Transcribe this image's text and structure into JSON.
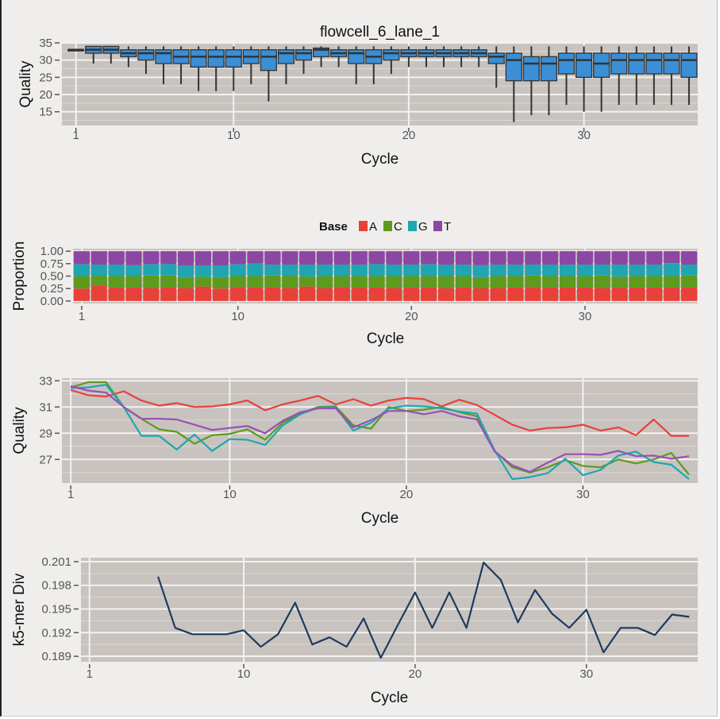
{
  "chart_data": [
    {
      "type": "box",
      "title": "flowcell_6_lane_1",
      "xlabel": "Cycle",
      "ylabel": "Quality",
      "xlim": [
        0.2,
        36.5
      ],
      "ylim": [
        11,
        35
      ],
      "xticks": [
        1,
        10,
        20,
        30
      ],
      "yticks": [
        15,
        20,
        25,
        30,
        35
      ],
      "fill_color": "#3a8fd6",
      "boxes": [
        {
          "x": 1,
          "lo": 33,
          "q1": 33,
          "med": 33,
          "q3": 33,
          "hi": 33
        },
        {
          "x": 2,
          "lo": 29,
          "q1": 32,
          "med": 33,
          "q3": 34,
          "hi": 34
        },
        {
          "x": 3,
          "lo": 29,
          "q1": 32,
          "med": 33,
          "q3": 34,
          "hi": 34
        },
        {
          "x": 4,
          "lo": 28,
          "q1": 31,
          "med": 32,
          "q3": 33,
          "hi": 34
        },
        {
          "x": 5,
          "lo": 26,
          "q1": 30,
          "med": 32,
          "q3": 33,
          "hi": 34
        },
        {
          "x": 6,
          "lo": 23,
          "q1": 29,
          "med": 32,
          "q3": 33,
          "hi": 34
        },
        {
          "x": 7,
          "lo": 23,
          "q1": 29,
          "med": 31,
          "q3": 33,
          "hi": 34
        },
        {
          "x": 8,
          "lo": 21,
          "q1": 28,
          "med": 31,
          "q3": 33,
          "hi": 34
        },
        {
          "x": 9,
          "lo": 21,
          "q1": 28,
          "med": 31,
          "q3": 33,
          "hi": 34
        },
        {
          "x": 10,
          "lo": 21,
          "q1": 28,
          "med": 31,
          "q3": 33,
          "hi": 34
        },
        {
          "x": 11,
          "lo": 23,
          "q1": 29,
          "med": 31,
          "q3": 33,
          "hi": 34
        },
        {
          "x": 12,
          "lo": 18,
          "q1": 27,
          "med": 31,
          "q3": 33,
          "hi": 34
        },
        {
          "x": 13,
          "lo": 23,
          "q1": 29,
          "med": 32,
          "q3": 33,
          "hi": 34
        },
        {
          "x": 14,
          "lo": 26,
          "q1": 30,
          "med": 32,
          "q3": 33,
          "hi": 34
        },
        {
          "x": 15,
          "lo": 28,
          "q1": 31,
          "med": 33,
          "q3": 33.5,
          "hi": 34
        },
        {
          "x": 16,
          "lo": 28,
          "q1": 31,
          "med": 32,
          "q3": 33,
          "hi": 34
        },
        {
          "x": 17,
          "lo": 23,
          "q1": 29,
          "med": 32,
          "q3": 33,
          "hi": 34
        },
        {
          "x": 18,
          "lo": 23,
          "q1": 29,
          "med": 31,
          "q3": 33,
          "hi": 34
        },
        {
          "x": 19,
          "lo": 26,
          "q1": 30,
          "med": 32,
          "q3": 33,
          "hi": 34
        },
        {
          "x": 20,
          "lo": 28,
          "q1": 31,
          "med": 32,
          "q3": 33,
          "hi": 34
        },
        {
          "x": 21,
          "lo": 28,
          "q1": 31,
          "med": 32,
          "q3": 33,
          "hi": 34
        },
        {
          "x": 22,
          "lo": 28,
          "q1": 31,
          "med": 32,
          "q3": 33,
          "hi": 34
        },
        {
          "x": 23,
          "lo": 28,
          "q1": 31,
          "med": 32,
          "q3": 33,
          "hi": 34
        },
        {
          "x": 24,
          "lo": 28,
          "q1": 31,
          "med": 32,
          "q3": 33,
          "hi": 34
        },
        {
          "x": 25,
          "lo": 22,
          "q1": 29,
          "med": 31,
          "q3": 32,
          "hi": 34
        },
        {
          "x": 26,
          "lo": 12,
          "q1": 24,
          "med": 30,
          "q3": 32,
          "hi": 34
        },
        {
          "x": 27,
          "lo": 14,
          "q1": 24,
          "med": 29,
          "q3": 31,
          "hi": 34
        },
        {
          "x": 28,
          "lo": 14,
          "q1": 24,
          "med": 29,
          "q3": 31,
          "hi": 34
        },
        {
          "x": 29,
          "lo": 17,
          "q1": 26,
          "med": 30,
          "q3": 32,
          "hi": 34
        },
        {
          "x": 30,
          "lo": 15,
          "q1": 25,
          "med": 30,
          "q3": 32,
          "hi": 34
        },
        {
          "x": 31,
          "lo": 15,
          "q1": 25,
          "med": 29,
          "q3": 32,
          "hi": 34
        },
        {
          "x": 32,
          "lo": 17,
          "q1": 26,
          "med": 30,
          "q3": 32,
          "hi": 34
        },
        {
          "x": 33,
          "lo": 17,
          "q1": 26,
          "med": 30,
          "q3": 32,
          "hi": 34
        },
        {
          "x": 34,
          "lo": 17,
          "q1": 26,
          "med": 30,
          "q3": 32,
          "hi": 34
        },
        {
          "x": 35,
          "lo": 17,
          "q1": 26,
          "med": 30,
          "q3": 32,
          "hi": 34
        },
        {
          "x": 36,
          "lo": 17,
          "q1": 25,
          "med": 30,
          "q3": 32,
          "hi": 34
        }
      ]
    },
    {
      "type": "bar",
      "stacked": true,
      "xlabel": "Cycle",
      "ylabel": "Proportion",
      "xlim": [
        0.5,
        36.5
      ],
      "ylim": [
        -0.05,
        1.05
      ],
      "xticks": [
        1,
        10,
        20,
        30
      ],
      "yticks": [
        0.0,
        0.25,
        0.5,
        0.75,
        1.0
      ],
      "ytick_labels": [
        "0.00",
        "0.25",
        "0.50",
        "0.75",
        "1.00"
      ],
      "legend": {
        "title": "Base",
        "position": "top"
      },
      "categories": [
        1,
        2,
        3,
        4,
        5,
        6,
        7,
        8,
        9,
        10,
        11,
        12,
        13,
        14,
        15,
        16,
        17,
        18,
        19,
        20,
        21,
        22,
        23,
        24,
        25,
        26,
        27,
        28,
        29,
        30,
        31,
        32,
        33,
        34,
        35,
        36
      ],
      "series": [
        {
          "name": "A",
          "color": "#e8413a",
          "values": [
            0.25,
            0.3,
            0.27,
            0.27,
            0.26,
            0.27,
            0.26,
            0.29,
            0.25,
            0.28,
            0.27,
            0.27,
            0.26,
            0.29,
            0.26,
            0.28,
            0.27,
            0.27,
            0.26,
            0.27,
            0.27,
            0.26,
            0.27,
            0.26,
            0.26,
            0.27,
            0.28,
            0.27,
            0.27,
            0.27,
            0.26,
            0.27,
            0.27,
            0.27,
            0.27,
            0.27
          ]
        },
        {
          "name": "C",
          "color": "#5e9a1e",
          "values": [
            0.25,
            0.2,
            0.23,
            0.23,
            0.25,
            0.24,
            0.22,
            0.2,
            0.23,
            0.22,
            0.23,
            0.24,
            0.24,
            0.2,
            0.24,
            0.22,
            0.23,
            0.23,
            0.24,
            0.23,
            0.23,
            0.24,
            0.23,
            0.22,
            0.24,
            0.23,
            0.23,
            0.23,
            0.23,
            0.23,
            0.25,
            0.22,
            0.23,
            0.23,
            0.23,
            0.24
          ]
        },
        {
          "name": "G",
          "color": "#1fa6b0",
          "values": [
            0.24,
            0.23,
            0.23,
            0.22,
            0.23,
            0.23,
            0.23,
            0.22,
            0.23,
            0.24,
            0.25,
            0.22,
            0.23,
            0.24,
            0.23,
            0.23,
            0.23,
            0.24,
            0.23,
            0.23,
            0.24,
            0.23,
            0.23,
            0.24,
            0.23,
            0.23,
            0.22,
            0.23,
            0.23,
            0.23,
            0.22,
            0.24,
            0.23,
            0.23,
            0.26,
            0.22
          ]
        },
        {
          "name": "T",
          "color": "#8c47a4",
          "values": [
            0.26,
            0.27,
            0.27,
            0.28,
            0.26,
            0.26,
            0.29,
            0.29,
            0.29,
            0.26,
            0.25,
            0.27,
            0.27,
            0.27,
            0.27,
            0.27,
            0.27,
            0.26,
            0.27,
            0.27,
            0.26,
            0.27,
            0.27,
            0.28,
            0.27,
            0.27,
            0.27,
            0.27,
            0.27,
            0.27,
            0.27,
            0.27,
            0.27,
            0.27,
            0.24,
            0.27
          ]
        }
      ]
    },
    {
      "type": "line",
      "xlabel": "Cycle",
      "ylabel": "Quality",
      "xlim": [
        0.5,
        36.5
      ],
      "ylim": [
        25.2,
        33.2
      ],
      "xticks": [
        1,
        10,
        20,
        30
      ],
      "yticks": [
        27,
        29,
        31,
        33
      ],
      "x": [
        1,
        2,
        3,
        4,
        5,
        6,
        7,
        8,
        9,
        10,
        11,
        12,
        13,
        14,
        15,
        16,
        17,
        18,
        19,
        20,
        21,
        22,
        23,
        24,
        25,
        26,
        27,
        28,
        29,
        30,
        31,
        32,
        33,
        34,
        35,
        36
      ],
      "series": [
        {
          "name": "A",
          "color": "#e8413a",
          "values": [
            32.3,
            31.9,
            31.8,
            32.2,
            31.5,
            31.1,
            31.3,
            31.0,
            31.05,
            31.2,
            31.5,
            30.75,
            31.2,
            31.5,
            31.85,
            31.2,
            31.6,
            31.1,
            31.5,
            31.7,
            31.6,
            31.05,
            31.55,
            31.15,
            30.4,
            29.65,
            29.2,
            29.4,
            29.45,
            29.65,
            29.2,
            29.45,
            28.85,
            30.05,
            28.8,
            28.8
          ]
        },
        {
          "name": "C",
          "color": "#5e9a1e",
          "values": [
            32.5,
            32.9,
            32.9,
            31.0,
            30.1,
            29.3,
            29.1,
            28.2,
            28.85,
            28.95,
            29.3,
            28.5,
            29.8,
            30.5,
            31.0,
            31.05,
            29.6,
            29.35,
            31.0,
            30.7,
            30.8,
            31.0,
            30.6,
            30.3,
            27.65,
            26.4,
            26.0,
            26.4,
            26.95,
            26.5,
            26.4,
            27.0,
            26.7,
            27.0,
            27.5,
            25.85
          ]
        },
        {
          "name": "G",
          "color": "#1fa6b0",
          "values": [
            32.45,
            32.5,
            32.7,
            31.0,
            28.8,
            28.8,
            27.75,
            28.9,
            27.65,
            28.55,
            28.5,
            28.1,
            29.6,
            30.45,
            30.95,
            31.0,
            29.2,
            29.8,
            30.9,
            31.1,
            31.05,
            30.9,
            30.65,
            30.5,
            27.7,
            25.5,
            25.65,
            25.95,
            27.05,
            25.8,
            26.2,
            27.3,
            27.6,
            26.8,
            26.6,
            25.5
          ]
        },
        {
          "name": "T",
          "color": "#9b4fb4",
          "values": [
            32.6,
            32.25,
            32.1,
            31.0,
            30.1,
            30.1,
            30.05,
            29.65,
            29.25,
            29.4,
            29.55,
            29.0,
            29.95,
            30.6,
            30.9,
            30.9,
            29.45,
            30.0,
            30.7,
            30.7,
            30.45,
            30.7,
            30.3,
            30.05,
            27.6,
            26.55,
            26.05,
            26.75,
            27.4,
            27.4,
            27.35,
            27.65,
            27.25,
            27.3,
            27.05,
            27.25
          ]
        }
      ]
    },
    {
      "type": "line",
      "xlabel": "Cycle",
      "ylabel": "k5-mer Div",
      "xlim": [
        0.5,
        36.5
      ],
      "ylim": [
        0.1883,
        0.2015
      ],
      "xticks": [
        1,
        10,
        20,
        30
      ],
      "yticks": [
        0.189,
        0.192,
        0.195,
        0.198,
        0.201
      ],
      "ytick_labels": [
        "0.189",
        "0.192",
        "0.195",
        "0.198",
        "0.201"
      ],
      "x": [
        5,
        6,
        7,
        8,
        9,
        10,
        11,
        12,
        13,
        14,
        15,
        16,
        17,
        18,
        19,
        20,
        21,
        22,
        23,
        24,
        25,
        26,
        27,
        28,
        29,
        30,
        31,
        32,
        33,
        34,
        35,
        36
      ],
      "series": [
        {
          "name": "k5-mer Div",
          "color": "#1e3a5f",
          "values": [
            0.1991,
            0.1926,
            0.1918,
            0.1918,
            0.1918,
            0.1923,
            0.1902,
            0.1918,
            0.1958,
            0.1905,
            0.1914,
            0.1902,
            0.1938,
            0.1888,
            0.193,
            0.1971,
            0.1926,
            0.1971,
            0.1926,
            0.2009,
            0.1987,
            0.1933,
            0.1974,
            0.1944,
            0.1926,
            0.1949,
            0.1895,
            0.1926,
            0.1926,
            0.1917,
            0.1943,
            0.194
          ]
        }
      ]
    }
  ]
}
